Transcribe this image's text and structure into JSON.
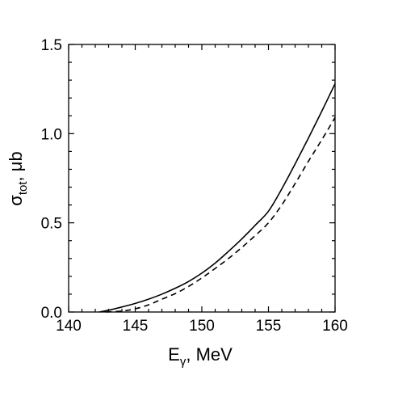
{
  "chart_data": {
    "type": "line",
    "xlabel": {
      "main": "E",
      "sub": "γ",
      "rest": ", MeV"
    },
    "ylabel": {
      "main": "σ",
      "sub": "tot",
      "rest": ", μb"
    },
    "xlim": [
      140,
      160
    ],
    "ylim": [
      0.0,
      1.5
    ],
    "x_ticks": [
      "140",
      "145",
      "150",
      "155",
      "160"
    ],
    "y_ticks": [
      "0.0",
      "0.5",
      "1.0",
      "1.5"
    ],
    "grid": false,
    "legend": "none",
    "series": [
      {
        "style": "solid",
        "color": "#000000",
        "x": [
          142.3,
          143,
          144,
          145,
          146,
          147,
          148,
          149,
          150,
          151,
          152,
          153,
          154,
          155,
          156,
          157,
          158,
          159,
          160
        ],
        "y": [
          0.0,
          0.01,
          0.028,
          0.048,
          0.072,
          0.1,
          0.133,
          0.171,
          0.218,
          0.274,
          0.34,
          0.41,
          0.486,
          0.565,
          0.69,
          0.83,
          0.975,
          1.125,
          1.28
        ]
      },
      {
        "style": "dashed",
        "color": "#000000",
        "x": [
          142.8,
          144,
          145,
          146,
          147,
          148,
          149,
          150,
          151,
          152,
          153,
          154,
          155,
          156,
          157,
          158,
          159,
          160
        ],
        "y": [
          0.0,
          0.005,
          0.018,
          0.04,
          0.072,
          0.103,
          0.143,
          0.191,
          0.244,
          0.3,
          0.362,
          0.428,
          0.5,
          0.6,
          0.72,
          0.845,
          0.965,
          1.09
        ]
      }
    ]
  }
}
